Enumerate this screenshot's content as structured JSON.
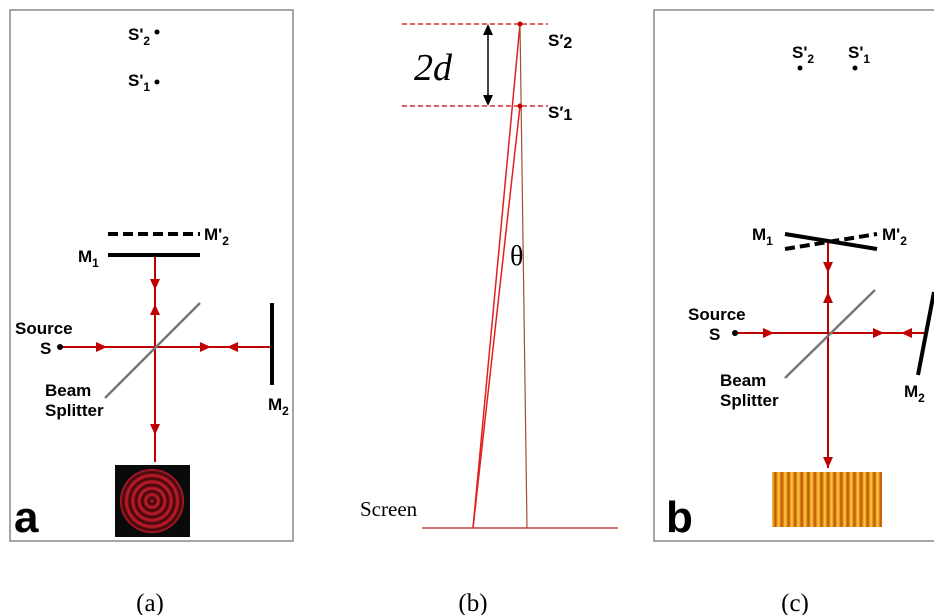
{
  "panel_a": {
    "tag": "a",
    "image_point_2": {
      "main": "S'",
      "sub": "2"
    },
    "image_point_1": {
      "main": "S'",
      "sub": "1"
    },
    "mirror_image_label": {
      "main": "M'",
      "sub": "2"
    },
    "mirror_1_label": {
      "main": "M",
      "sub": "1"
    },
    "mirror_2_label": {
      "main": "M",
      "sub": "2"
    },
    "source_label": [
      "Source",
      "S"
    ],
    "splitter_label": [
      "Beam",
      "Splitter"
    ]
  },
  "panel_b": {
    "separation_label": "2d",
    "image_point_2": {
      "main": "S′",
      "sub": "2"
    },
    "image_point_1": {
      "main": "S′",
      "sub": "1"
    },
    "angle_label": "θ",
    "screen_label": "Screen"
  },
  "panel_c": {
    "tag": "b",
    "image_point_2": {
      "main": "S'",
      "sub": "2"
    },
    "image_point_1": {
      "main": "S'",
      "sub": "1"
    },
    "mirror_1_label": {
      "main": "M",
      "sub": "1"
    },
    "mirror_image_label": {
      "main": "M'",
      "sub": "2"
    },
    "mirror_2_label": {
      "main": "M",
      "sub": "2"
    },
    "source_label": [
      "Source",
      "S"
    ],
    "splitter_label": [
      "Beam",
      "Splitter"
    ]
  },
  "captions": [
    "(a)",
    "(b)",
    "(c)"
  ]
}
